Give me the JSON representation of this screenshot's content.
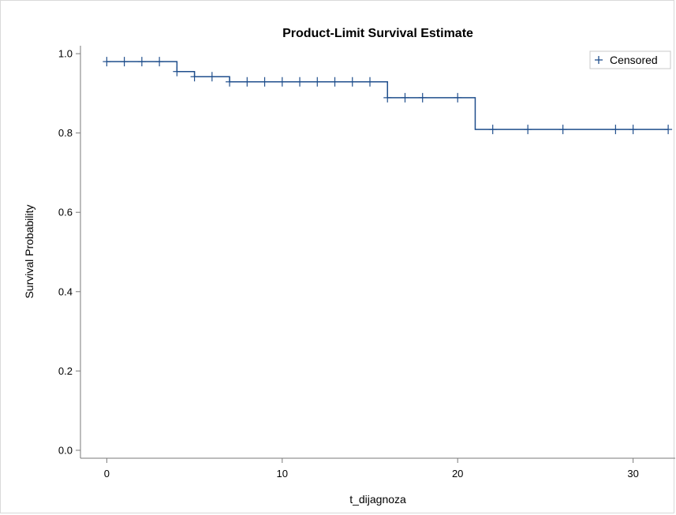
{
  "chart_data": {
    "type": "line",
    "title": "Product-Limit Survival Estimate",
    "xlabel": "t_dijagnoza",
    "ylabel": "Survival Probability",
    "xlim": [
      -1.5,
      32.4
    ],
    "ylim": [
      -0.02,
      1.02
    ],
    "x_ticks": [
      0,
      10,
      20,
      30
    ],
    "y_ticks": [
      0.0,
      0.2,
      0.4,
      0.6,
      0.8,
      1.0
    ],
    "x_tick_labels": [
      "0",
      "10",
      "20",
      "30"
    ],
    "y_tick_labels": [
      "0.0",
      "0.2",
      "0.4",
      "0.6",
      "0.8",
      "1.0"
    ],
    "grid": false,
    "legend": {
      "position": "top-right",
      "entries": [
        {
          "symbol": "+",
          "label": "Censored"
        }
      ]
    },
    "colors": {
      "series": "#1f4e8c",
      "axis": "#7a7a7a",
      "frame": "#d9d9d9"
    },
    "series": [
      {
        "step": "post",
        "x": [
          0,
          4,
          5,
          7,
          16,
          21,
          32
        ],
        "y": [
          0.98,
          0.955,
          0.942,
          0.929,
          0.889,
          0.809,
          0.809
        ]
      }
    ],
    "censored": {
      "x": [
        0,
        1,
        2,
        3,
        4,
        5,
        6,
        7,
        8,
        9,
        10,
        11,
        12,
        13,
        14,
        15,
        16,
        17,
        18,
        20,
        22,
        24,
        26,
        29,
        30,
        32
      ],
      "y": [
        0.98,
        0.98,
        0.98,
        0.98,
        0.955,
        0.942,
        0.942,
        0.929,
        0.929,
        0.929,
        0.929,
        0.929,
        0.929,
        0.929,
        0.929,
        0.929,
        0.889,
        0.889,
        0.889,
        0.889,
        0.809,
        0.809,
        0.809,
        0.809,
        0.809,
        0.809
      ]
    }
  }
}
